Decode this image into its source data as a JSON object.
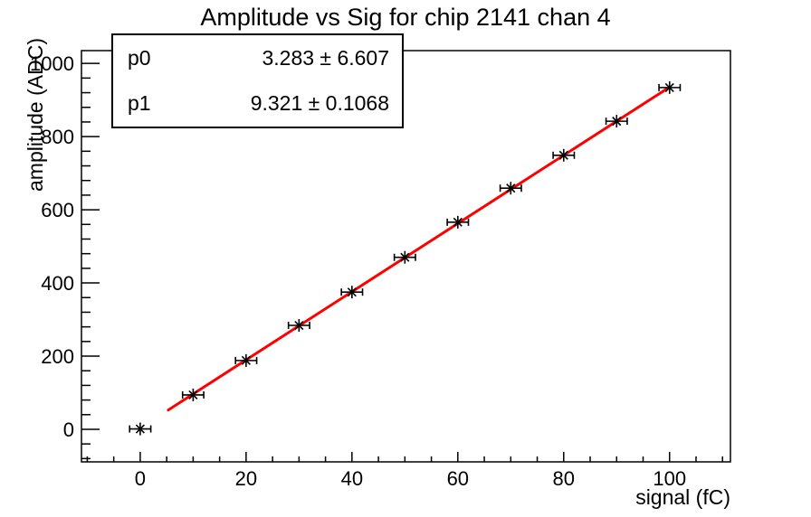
{
  "window": {
    "background": "#ffffff"
  },
  "chart_data": {
    "type": "scatter",
    "title": "Amplitude vs Sig for chip 2141 chan 4",
    "xlabel": "signal (fC)",
    "ylabel": "amplitude (ADC)",
    "x": [
      0,
      10,
      20,
      30,
      40,
      50,
      60,
      70,
      80,
      90,
      100
    ],
    "y": [
      1,
      94,
      188,
      284,
      375,
      470,
      566,
      659,
      749,
      842,
      934
    ],
    "x_error": 2,
    "xlim": [
      -11.1,
      111.5
    ],
    "ylim": [
      -89,
      1035
    ],
    "x_major_ticks": [
      0,
      20,
      40,
      60,
      80,
      100
    ],
    "x_minor_step": 5,
    "y_major_ticks": [
      0,
      200,
      400,
      600,
      800,
      1000
    ],
    "y_minor_step": 40,
    "grid": false,
    "legend_position": "none",
    "marker_style": "asterisk-with-x-error-bars",
    "marker_color": "#000000",
    "axis_color": "#000000",
    "fit": {
      "type": "linear",
      "p0": 3.283,
      "p1": 9.321,
      "x_start": 5.3,
      "x_end": 99.6,
      "color": "#ff0000"
    }
  },
  "stats_box": {
    "rows": [
      {
        "label": "p0",
        "value": "3.283 ± 6.607"
      },
      {
        "label": "p1",
        "value": "9.321 ± 0.1068"
      }
    ]
  }
}
